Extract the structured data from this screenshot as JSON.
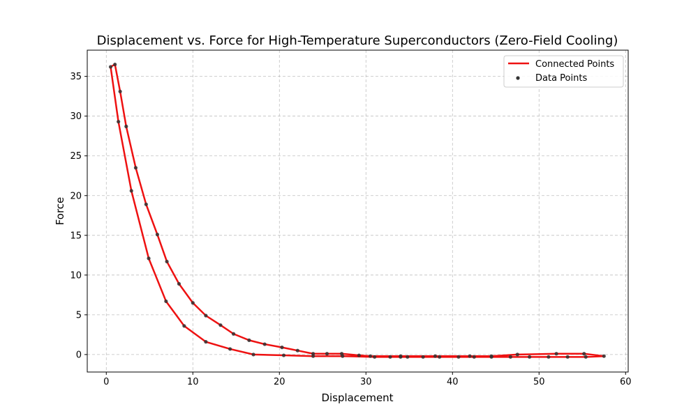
{
  "chart_data": {
    "type": "line",
    "title": "Displacement vs. Force for High-Temperature Superconductors (Zero-Field Cooling)",
    "xlabel": "Displacement",
    "ylabel": "Force",
    "xlim": [
      -2.2,
      60.3
    ],
    "ylim": [
      -2.2,
      38.3
    ],
    "xticks": [
      0,
      10,
      20,
      30,
      40,
      50,
      60
    ],
    "yticks": [
      0,
      5,
      10,
      15,
      20,
      25,
      30,
      35
    ],
    "grid": true,
    "legend_position": "top-right",
    "colors": {
      "line": "#ee1111",
      "points": "#333333"
    },
    "series": [
      {
        "name": "Connected Points",
        "kind": "line",
        "points": [
          [
            0.5,
            36.2
          ],
          [
            1.4,
            29.3
          ],
          [
            2.9,
            20.6
          ],
          [
            4.9,
            12.1
          ],
          [
            6.9,
            6.7
          ],
          [
            9.0,
            3.6
          ],
          [
            11.5,
            1.6
          ],
          [
            14.3,
            0.7
          ],
          [
            17.0,
            0.0
          ],
          [
            20.5,
            -0.1
          ],
          [
            23.9,
            -0.2
          ],
          [
            27.3,
            -0.2
          ],
          [
            31.0,
            -0.3
          ],
          [
            32.8,
            -0.3
          ],
          [
            34.0,
            -0.3
          ],
          [
            34.8,
            -0.3
          ],
          [
            36.6,
            -0.3
          ],
          [
            38.5,
            -0.3
          ],
          [
            40.7,
            -0.3
          ],
          [
            42.5,
            -0.3
          ],
          [
            44.5,
            -0.3
          ],
          [
            46.7,
            -0.3
          ],
          [
            48.9,
            -0.3
          ],
          [
            51.1,
            -0.3
          ],
          [
            53.3,
            -0.3
          ],
          [
            55.4,
            -0.3
          ],
          [
            57.5,
            -0.2
          ],
          [
            55.2,
            0.1
          ],
          [
            52.0,
            0.1
          ],
          [
            47.5,
            0.0
          ],
          [
            44.5,
            -0.2
          ],
          [
            42.0,
            -0.2
          ],
          [
            38.0,
            -0.2
          ],
          [
            34.0,
            -0.2
          ],
          [
            30.5,
            -0.2
          ],
          [
            29.2,
            -0.1
          ],
          [
            27.2,
            0.1
          ],
          [
            25.5,
            0.1
          ],
          [
            23.9,
            0.1
          ],
          [
            22.1,
            0.5
          ],
          [
            20.3,
            0.9
          ],
          [
            18.3,
            1.3
          ],
          [
            16.5,
            1.8
          ],
          [
            14.7,
            2.6
          ],
          [
            13.2,
            3.7
          ],
          [
            11.5,
            4.9
          ],
          [
            10.0,
            6.5
          ],
          [
            8.4,
            8.9
          ],
          [
            7.0,
            11.7
          ],
          [
            5.9,
            15.1
          ],
          [
            4.6,
            18.9
          ],
          [
            3.4,
            23.5
          ],
          [
            2.3,
            28.7
          ],
          [
            1.6,
            33.1
          ],
          [
            1.0,
            36.5
          ],
          [
            0.5,
            36.2
          ]
        ]
      },
      {
        "name": "Data Points",
        "kind": "scatter",
        "points": [
          [
            0.5,
            36.2
          ],
          [
            1.4,
            29.3
          ],
          [
            2.9,
            20.6
          ],
          [
            4.9,
            12.1
          ],
          [
            6.9,
            6.7
          ],
          [
            9.0,
            3.6
          ],
          [
            11.5,
            1.6
          ],
          [
            14.3,
            0.7
          ],
          [
            17.0,
            0.0
          ],
          [
            20.5,
            -0.1
          ],
          [
            23.9,
            -0.2
          ],
          [
            27.3,
            -0.2
          ],
          [
            31.0,
            -0.3
          ],
          [
            32.8,
            -0.3
          ],
          [
            34.0,
            -0.3
          ],
          [
            34.8,
            -0.3
          ],
          [
            36.6,
            -0.3
          ],
          [
            38.5,
            -0.3
          ],
          [
            40.7,
            -0.3
          ],
          [
            42.5,
            -0.3
          ],
          [
            44.5,
            -0.3
          ],
          [
            46.7,
            -0.3
          ],
          [
            48.9,
            -0.3
          ],
          [
            51.1,
            -0.3
          ],
          [
            53.3,
            -0.3
          ],
          [
            55.4,
            -0.3
          ],
          [
            57.5,
            -0.2
          ],
          [
            55.2,
            0.1
          ],
          [
            52.0,
            0.1
          ],
          [
            47.5,
            0.0
          ],
          [
            44.5,
            -0.2
          ],
          [
            42.0,
            -0.2
          ],
          [
            38.0,
            -0.2
          ],
          [
            34.0,
            -0.2
          ],
          [
            30.5,
            -0.2
          ],
          [
            29.2,
            -0.1
          ],
          [
            27.2,
            0.1
          ],
          [
            25.5,
            0.1
          ],
          [
            23.9,
            0.1
          ],
          [
            22.1,
            0.5
          ],
          [
            20.3,
            0.9
          ],
          [
            18.3,
            1.3
          ],
          [
            16.5,
            1.8
          ],
          [
            14.7,
            2.6
          ],
          [
            13.2,
            3.7
          ],
          [
            11.5,
            4.9
          ],
          [
            10.0,
            6.5
          ],
          [
            8.4,
            8.9
          ],
          [
            7.0,
            11.7
          ],
          [
            5.9,
            15.1
          ],
          [
            4.6,
            18.9
          ],
          [
            3.4,
            23.5
          ],
          [
            2.3,
            28.7
          ],
          [
            1.6,
            33.1
          ],
          [
            1.0,
            36.5
          ]
        ]
      }
    ]
  }
}
